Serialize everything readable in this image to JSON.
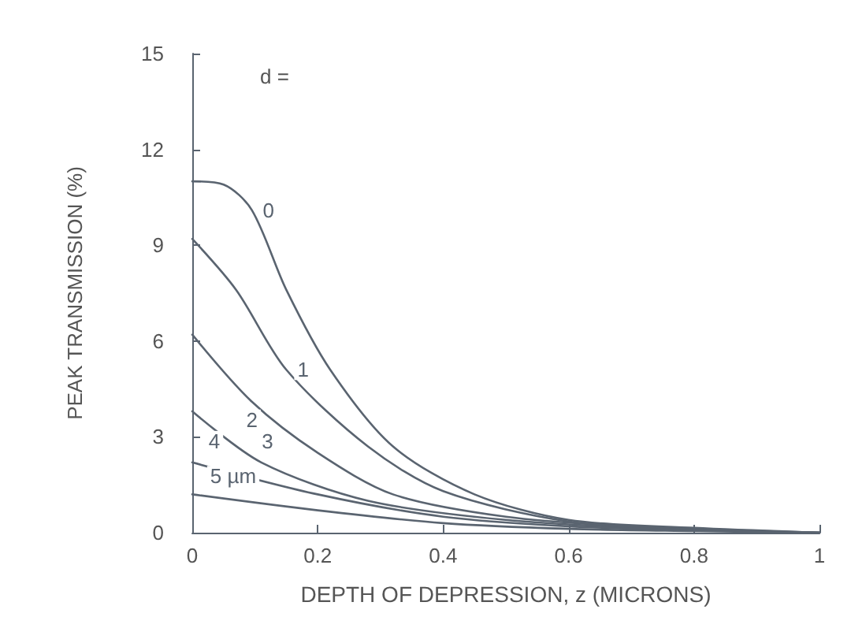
{
  "chart_data": {
    "type": "line",
    "xlabel": "DEPTH OF DEPRESSION, z (MICRONS)",
    "ylabel": "PEAK TRANSMISSION (%)",
    "annotations": [
      "d ="
    ],
    "xlim": [
      0,
      1.0
    ],
    "xticks": [
      0,
      0.2,
      0.4,
      0.6,
      0.8,
      1.0
    ],
    "ylim": [
      0,
      15
    ],
    "yticks": [
      0,
      3,
      6,
      9,
      12,
      15
    ],
    "grid": false,
    "legend": false,
    "marker": "none",
    "line_style": "solid",
    "series": [
      {
        "name": "0",
        "color": "#5a6470",
        "x": [
          0,
          0.05,
          0.095,
          0.15,
          0.22,
          0.32,
          0.45,
          0.6,
          0.8,
          1.0
        ],
        "values": [
          11.0,
          10.9,
          10.1,
          7.6,
          5.1,
          2.7,
          1.2,
          0.4,
          0.15,
          0
        ]
      },
      {
        "name": "1",
        "color": "#5a6470",
        "x": [
          0,
          0.07,
          0.15,
          0.28,
          0.4,
          0.6,
          0.8,
          1.0
        ],
        "values": [
          9.2,
          7.6,
          5.1,
          2.7,
          1.3,
          0.35,
          0.1,
          0
        ]
      },
      {
        "name": "2",
        "color": "#5a6470",
        "x": [
          0,
          0.095,
          0.2,
          0.32,
          0.5,
          0.7,
          1.0
        ],
        "values": [
          6.2,
          4.1,
          2.5,
          1.2,
          0.5,
          0.2,
          0
        ]
      },
      {
        "name": "3",
        "color": "#5a6470",
        "x": [
          0,
          0.11,
          0.28,
          0.5,
          0.75,
          1.0
        ],
        "values": [
          3.8,
          2.2,
          1.0,
          0.4,
          0.12,
          0
        ]
      },
      {
        "name": "4",
        "color": "#5a6470",
        "x": [
          0,
          0.2,
          0.4,
          0.6,
          0.8,
          1.0
        ],
        "values": [
          2.2,
          1.2,
          0.5,
          0.2,
          0.08,
          0
        ]
      },
      {
        "name": "5 µm",
        "color": "#5a6470",
        "x": [
          0,
          0.2,
          0.4,
          0.6,
          0.8,
          1.0
        ],
        "values": [
          1.2,
          0.7,
          0.3,
          0.12,
          0.05,
          0
        ]
      }
    ]
  }
}
